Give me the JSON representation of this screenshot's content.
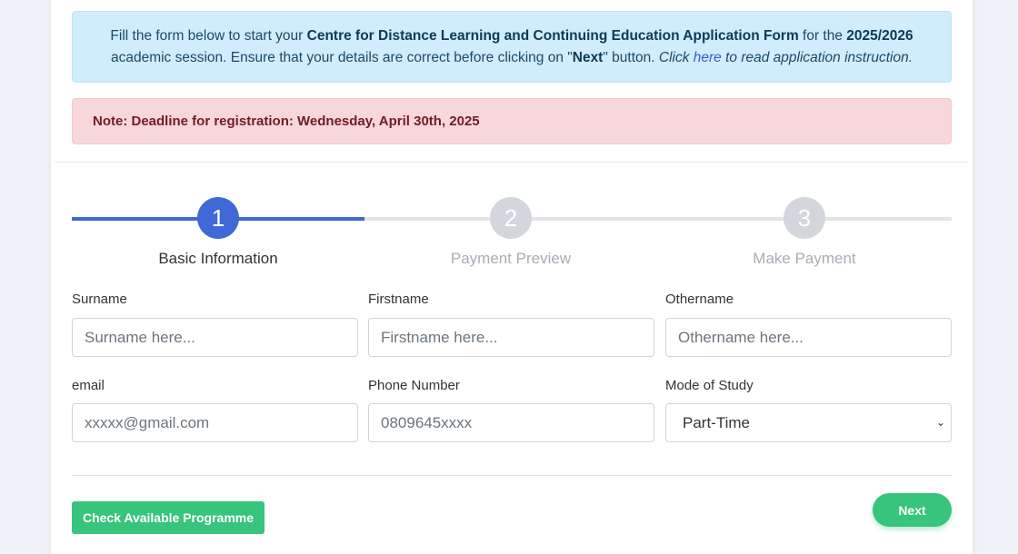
{
  "info": {
    "t1": "Fill the form below to start your ",
    "b1": "Centre for Distance Learning and Continuing Education Application Form",
    "t2": " for the ",
    "b2": "2025/2026",
    "t3": " academic session. Ensure that your details are correct before clicking on \"",
    "b3": "Next",
    "t4": "\" button. ",
    "i1": "Click ",
    "link": "here",
    "i2": " to read application instruction."
  },
  "alert": "Note: Deadline for registration: Wednesday, April 30th, 2025",
  "steps": [
    {
      "num": "1",
      "label": "Basic Information",
      "active": true
    },
    {
      "num": "2",
      "label": "Payment Preview",
      "active": false
    },
    {
      "num": "3",
      "label": "Make Payment",
      "active": false
    }
  ],
  "colors": {
    "active": "#4169d6",
    "inactive": "#d3d6db",
    "success": "#38c47c"
  },
  "form": {
    "surname": {
      "label": "Surname",
      "placeholder": "Surname here..."
    },
    "firstname": {
      "label": "Firstname",
      "placeholder": "Firstname here..."
    },
    "othername": {
      "label": "Othername",
      "placeholder": "Othername here..."
    },
    "email": {
      "label": "email",
      "placeholder": "xxxxx@gmail.com"
    },
    "phone": {
      "label": "Phone Number",
      "placeholder": "0809645xxxx"
    },
    "mode": {
      "label": "Mode of Study",
      "value": "Part-Time"
    }
  },
  "buttons": {
    "check": "Check Available Programme",
    "next": "Next"
  }
}
